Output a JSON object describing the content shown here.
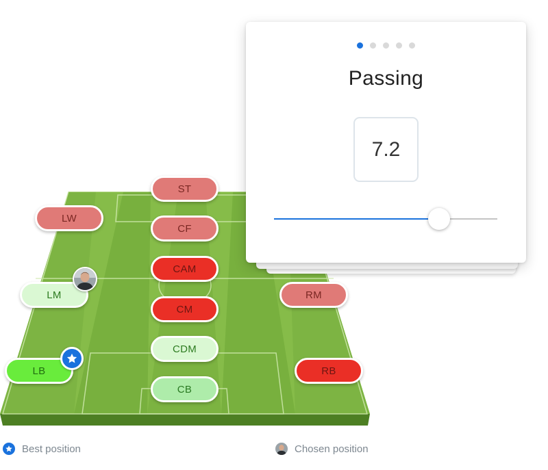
{
  "pitch": {
    "positions": [
      {
        "key": "st",
        "label": "ST"
      },
      {
        "key": "cf",
        "label": "CF"
      },
      {
        "key": "lw",
        "label": "LW"
      },
      {
        "key": "cam",
        "label": "CAM"
      },
      {
        "key": "lm",
        "label": "LM"
      },
      {
        "key": "rm",
        "label": "RM"
      },
      {
        "key": "cm",
        "label": "CM"
      },
      {
        "key": "cdm",
        "label": "CDM"
      },
      {
        "key": "lb",
        "label": "LB"
      },
      {
        "key": "rb",
        "label": "RB"
      },
      {
        "key": "cb",
        "label": "CB"
      }
    ],
    "best_position": "LB",
    "chosen_position": "LM"
  },
  "card": {
    "title": "Passing",
    "value": "7.2",
    "pages": 5,
    "active_page": 1,
    "slider_fraction": 0.74
  },
  "legend": {
    "best": "Best position",
    "chosen": "Chosen position"
  },
  "colors": {
    "accent": "#1a72dd",
    "grass_light": "#8cc04d",
    "grass_dark": "#6aa53a",
    "red_light": "#e07a77",
    "red_strong": "#ea2f26",
    "green_pale": "#daf8d3",
    "green_soft": "#aeecaa",
    "green_bright": "#69ec3c"
  },
  "icons": {
    "best": "star-icon",
    "chosen": "player-avatar-icon"
  }
}
